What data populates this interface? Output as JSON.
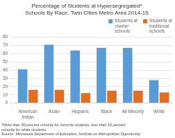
{
  "chart_data": {
    "type": "bar",
    "title": "Percentage of Students at Hypersegregated*\nSchools By Race, Twin Cities Metro Area 2014-15",
    "categories": [
      "American\nIndian",
      "Asian",
      "Hispanic",
      "Black",
      "All Minority",
      "White"
    ],
    "series": [
      {
        "name": "Students at\ncharter\nschools",
        "color": "#5B9BD5",
        "values": [
          41,
          71,
          64,
          67,
          67,
          28
        ]
      },
      {
        "name": "Students at\ntraditional\nschools",
        "color": "#E36F1E",
        "values": [
          16,
          16,
          12,
          15,
          15,
          13
        ]
      }
    ],
    "ylim": [
      0,
      80
    ],
    "yticks": [
      0,
      10,
      20,
      30,
      40,
      50,
      60,
      70,
      80
    ],
    "grid": true,
    "legend": "upper right",
    "annotations": [
      "*More than 90 percent minority for minority students; less than 10 percent",
      "minority for white students.",
      "Source: Minnesota Department of Education, Institute on Metropolitan Opportunity"
    ]
  }
}
